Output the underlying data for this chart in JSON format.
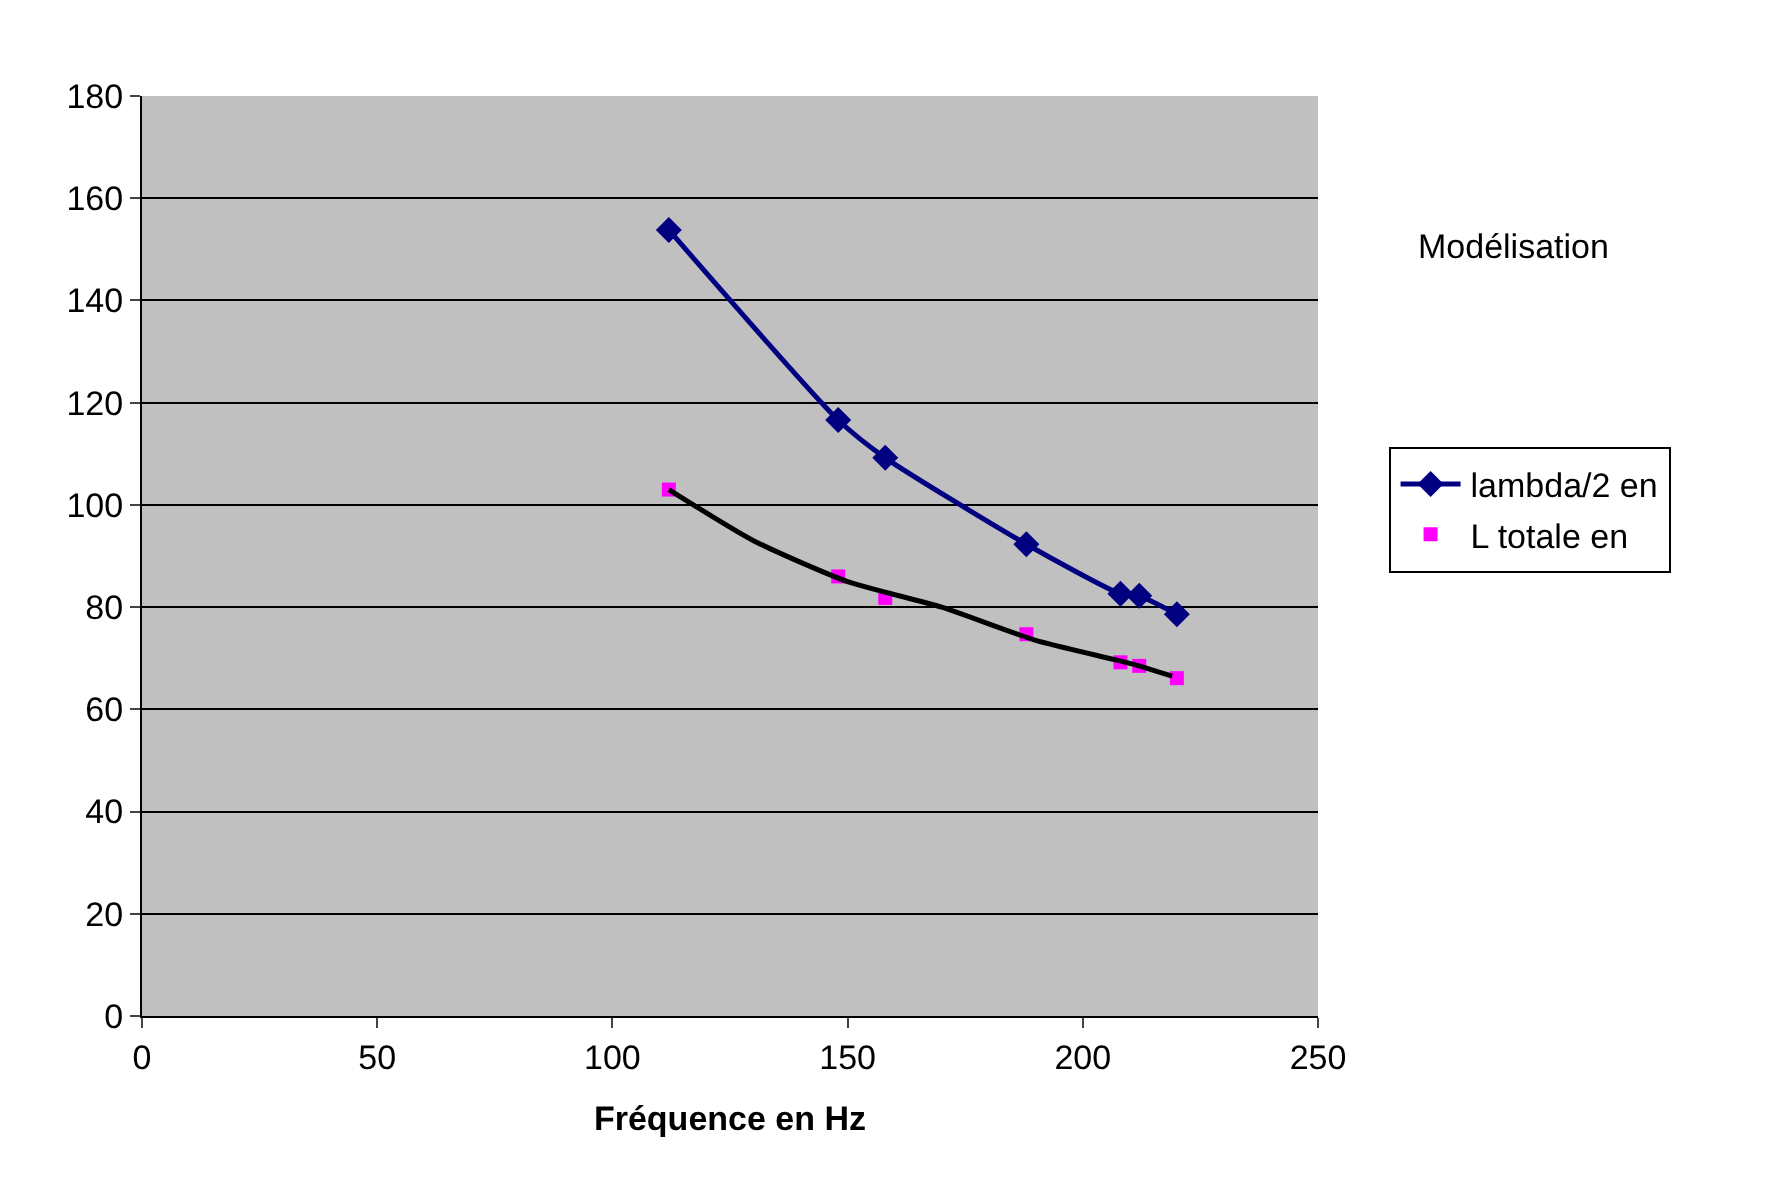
{
  "chart_data": {
    "type": "line",
    "xlabel": "Fréquence en Hz",
    "annotations": [
      "Modélisation"
    ],
    "xlim": [
      0,
      250
    ],
    "xticks": [
      0,
      50,
      100,
      150,
      200,
      250
    ],
    "ylim": [
      0,
      180
    ],
    "yticks": [
      0,
      20,
      40,
      60,
      80,
      100,
      120,
      140,
      160,
      180
    ],
    "grid": "y",
    "legend": "right",
    "series": [
      {
        "name": "lambda/2 en",
        "marker": "diamond",
        "color": "#000080",
        "x": [
          112,
          148,
          158,
          188,
          208,
          212,
          220
        ],
        "values": [
          153.8,
          116.6,
          109.2,
          92.3,
          82.6,
          82.2,
          78.6
        ]
      },
      {
        "name": "L totale en",
        "type": "scatter",
        "marker": "square",
        "color": "#ff00ff",
        "x": [
          112,
          148,
          158,
          188,
          208,
          212,
          220
        ],
        "values": [
          103,
          86,
          81.8,
          74.7,
          69.2,
          68.5,
          66.1
        ]
      },
      {
        "marker": "none",
        "color": "#000000",
        "x": [
          112,
          130,
          150,
          170,
          190,
          210,
          219
        ],
        "values": [
          103,
          93,
          85,
          80,
          73.5,
          69,
          66.5
        ]
      }
    ]
  }
}
